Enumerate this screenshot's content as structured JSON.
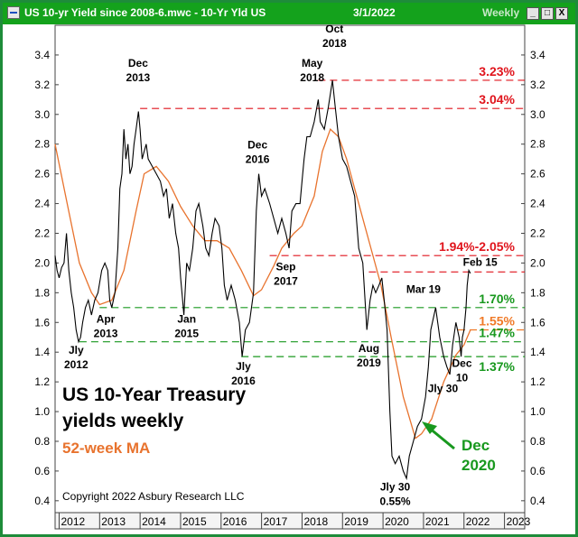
{
  "window": {
    "title": "US 10-yr Yield since 2008-6.mwc - 10-Yr Yld US",
    "date": "3/1/2022",
    "period": "Weekly",
    "buttons": {
      "minimize": "_",
      "maximize": "□",
      "close": "X"
    }
  },
  "colors": {
    "window_green": "#14a21c",
    "price_line": "#000000",
    "ma_line": "#e8732e",
    "red_level": "#e0141c",
    "green_level": "#18981e",
    "orange_level": "#f07a28"
  },
  "chart_data": {
    "type": "line",
    "title": "US 10-Year Treasury yields weekly",
    "subtitle": "52-week MA",
    "copyright": "Copyright 2022 Asbury Research LLC",
    "xlabel": "",
    "ylabel": "",
    "xlim": [
      2011.9,
      2023.5
    ],
    "ylim": [
      0.32,
      3.6
    ],
    "x_ticks": [
      "2012",
      "2013",
      "2014",
      "2015",
      "2016",
      "2017",
      "2018",
      "2019",
      "2020",
      "2021",
      "2022",
      "2023"
    ],
    "y_ticks": [
      "0.4",
      "0.6",
      "0.8",
      "1.0",
      "1.2",
      "1.4",
      "1.6",
      "1.8",
      "2.0",
      "2.2",
      "2.4",
      "2.6",
      "2.8",
      "3.0",
      "3.2",
      "3.4"
    ],
    "grid": false,
    "series": [
      {
        "name": "10-Yr Yld US",
        "x": [
          2011.9,
          2011.95,
          2012.0,
          2012.06,
          2012.12,
          2012.18,
          2012.24,
          2012.3,
          2012.36,
          2012.42,
          2012.48,
          2012.53,
          2012.58,
          2012.65,
          2012.72,
          2012.8,
          2012.88,
          2012.96,
          2013.05,
          2013.13,
          2013.2,
          2013.25,
          2013.3,
          2013.38,
          2013.45,
          2013.5,
          2013.55,
          2013.6,
          2013.65,
          2013.7,
          2013.75,
          2013.8,
          2013.85,
          2013.9,
          2013.96,
          2014.0,
          2014.05,
          2014.1,
          2014.15,
          2014.2,
          2014.3,
          2014.4,
          2014.5,
          2014.58,
          2014.65,
          2014.72,
          2014.8,
          2014.88,
          2014.95,
          2015.0,
          2015.05,
          2015.08,
          2015.15,
          2015.22,
          2015.3,
          2015.38,
          2015.45,
          2015.55,
          2015.62,
          2015.7,
          2015.78,
          2015.85,
          2015.95,
          2016.02,
          2016.08,
          2016.15,
          2016.25,
          2016.35,
          2016.45,
          2016.52,
          2016.6,
          2016.7,
          2016.8,
          2016.87,
          2016.93,
          2017.0,
          2017.08,
          2017.2,
          2017.3,
          2017.4,
          2017.5,
          2017.6,
          2017.68,
          2017.75,
          2017.85,
          2017.95,
          2018.0,
          2018.05,
          2018.12,
          2018.2,
          2018.3,
          2018.4,
          2018.45,
          2018.55,
          2018.65,
          2018.75,
          2018.82,
          2018.9,
          2019.0,
          2019.1,
          2019.2,
          2019.3,
          2019.4,
          2019.5,
          2019.6,
          2019.68,
          2019.75,
          2019.82,
          2019.9,
          2019.97,
          2020.03,
          2020.1,
          2020.17,
          2020.22,
          2020.3,
          2020.4,
          2020.5,
          2020.58,
          2020.65,
          2020.75,
          2020.85,
          2020.95,
          2021.05,
          2021.12,
          2021.18,
          2021.22,
          2021.3,
          2021.4,
          2021.5,
          2021.58,
          2021.65,
          2021.72,
          2021.8,
          2021.88,
          2021.93,
          2021.96,
          2022.0,
          2022.05,
          2022.08,
          2022.12,
          2022.16
        ],
        "values": [
          2.05,
          1.95,
          1.9,
          1.97,
          2.0,
          2.2,
          1.95,
          1.8,
          1.7,
          1.55,
          1.47,
          1.5,
          1.6,
          1.7,
          1.75,
          1.65,
          1.75,
          1.8,
          1.95,
          2.0,
          1.95,
          1.75,
          1.7,
          1.8,
          2.1,
          2.5,
          2.6,
          2.9,
          2.7,
          2.8,
          2.6,
          2.65,
          2.8,
          2.9,
          3.02,
          2.9,
          2.7,
          2.75,
          2.8,
          2.7,
          2.65,
          2.6,
          2.55,
          2.45,
          2.5,
          2.3,
          2.4,
          2.2,
          2.1,
          1.9,
          1.75,
          1.65,
          2.0,
          1.95,
          2.1,
          2.35,
          2.4,
          2.25,
          2.1,
          2.05,
          2.2,
          2.3,
          2.25,
          2.1,
          1.85,
          1.75,
          1.85,
          1.75,
          1.6,
          1.37,
          1.55,
          1.6,
          1.8,
          2.35,
          2.6,
          2.45,
          2.5,
          2.4,
          2.3,
          2.2,
          2.3,
          2.2,
          2.1,
          2.35,
          2.4,
          2.4,
          2.55,
          2.7,
          2.85,
          2.85,
          2.95,
          3.1,
          2.95,
          2.9,
          3.05,
          3.23,
          3.05,
          2.85,
          2.7,
          2.65,
          2.55,
          2.45,
          2.1,
          2.0,
          1.55,
          1.75,
          1.85,
          1.8,
          1.85,
          1.9,
          1.75,
          1.55,
          1.0,
          0.7,
          0.65,
          0.7,
          0.6,
          0.55,
          0.7,
          0.8,
          0.9,
          0.95,
          1.1,
          1.3,
          1.55,
          1.6,
          1.7,
          1.5,
          1.37,
          1.3,
          1.25,
          1.45,
          1.6,
          1.5,
          1.37,
          1.5,
          1.55,
          1.7,
          1.85,
          1.95,
          1.93
        ]
      },
      {
        "name": "52-week MA",
        "x": [
          2011.9,
          2012.2,
          2012.5,
          2012.8,
          2013.0,
          2013.3,
          2013.6,
          2013.9,
          2014.1,
          2014.4,
          2014.7,
          2015.0,
          2015.3,
          2015.6,
          2015.9,
          2016.2,
          2016.5,
          2016.8,
          2017.0,
          2017.3,
          2017.5,
          2017.8,
          2018.0,
          2018.3,
          2018.5,
          2018.7,
          2018.9,
          2019.1,
          2019.4,
          2019.7,
          2019.95,
          2020.2,
          2020.5,
          2020.8,
          2020.95,
          2021.2,
          2021.5,
          2021.8,
          2022.0,
          2022.16
        ],
        "values": [
          2.8,
          2.4,
          2.0,
          1.8,
          1.72,
          1.75,
          1.95,
          2.35,
          2.6,
          2.65,
          2.55,
          2.38,
          2.25,
          2.15,
          2.15,
          2.1,
          1.95,
          1.78,
          1.82,
          1.98,
          2.1,
          2.2,
          2.25,
          2.45,
          2.75,
          2.9,
          2.85,
          2.7,
          2.4,
          2.1,
          1.85,
          1.5,
          1.1,
          0.82,
          0.85,
          0.95,
          1.2,
          1.38,
          1.45,
          1.55
        ]
      }
    ],
    "levels": [
      {
        "label": "3.23%",
        "value": 3.23,
        "from": 2018.4,
        "color": "red"
      },
      {
        "label": "3.04%",
        "value": 3.04,
        "from": 2014.0,
        "color": "red"
      },
      {
        "label": "1.94%-2.05%",
        "value": 2.05,
        "from": 2017.2,
        "color": "red"
      },
      {
        "label": "",
        "value": 1.94,
        "from": 2019.65,
        "color": "red"
      },
      {
        "label": "1.70%",
        "value": 1.7,
        "from": 2013.0,
        "color": "green"
      },
      {
        "label": "1.55%",
        "value": 1.55,
        "from": 2021.85,
        "color": "orange"
      },
      {
        "label": "1.47%",
        "value": 1.47,
        "from": 2012.5,
        "color": "green"
      },
      {
        "label": "1.37%",
        "value": 1.37,
        "from": 2016.5,
        "color": "green"
      }
    ],
    "annotations": [
      {
        "lines": [
          "Dec",
          "2013"
        ],
        "x": 2013.95,
        "y": 3.32
      },
      {
        "lines": [
          "Oct",
          "2018"
        ],
        "x": 2018.8,
        "y": 3.55
      },
      {
        "lines": [
          "May",
          "2018"
        ],
        "x": 2018.25,
        "y": 3.32
      },
      {
        "lines": [
          "Dec",
          "2016"
        ],
        "x": 2016.9,
        "y": 2.77
      },
      {
        "lines": [
          "Sep",
          "2017"
        ],
        "x": 2017.6,
        "y": 1.95
      },
      {
        "lines": [
          "Apr",
          "2013"
        ],
        "x": 2013.15,
        "y": 1.6
      },
      {
        "lines": [
          "Jan",
          "2015"
        ],
        "x": 2015.15,
        "y": 1.6
      },
      {
        "lines": [
          "Jly",
          "2012"
        ],
        "x": 2012.42,
        "y": 1.39
      },
      {
        "lines": [
          "Jly",
          "2016"
        ],
        "x": 2016.55,
        "y": 1.28
      },
      {
        "lines": [
          "Aug",
          "2019"
        ],
        "x": 2019.65,
        "y": 1.4
      },
      {
        "lines": [
          "Mar 19"
        ],
        "x": 2021.0,
        "y": 1.8
      },
      {
        "lines": [
          "Feb 15"
        ],
        "x": 2022.4,
        "y": 1.98
      },
      {
        "lines": [
          "Jly 30"
        ],
        "x": 2021.48,
        "y": 1.13
      },
      {
        "lines": [
          "Dec",
          "10"
        ],
        "x": 2021.95,
        "y": 1.3
      },
      {
        "lines": [
          "Jly 30",
          "0.55%"
        ],
        "x": 2020.3,
        "y": 0.47
      }
    ],
    "dec2020_callout": {
      "lines": [
        "Dec",
        "2020"
      ]
    }
  }
}
